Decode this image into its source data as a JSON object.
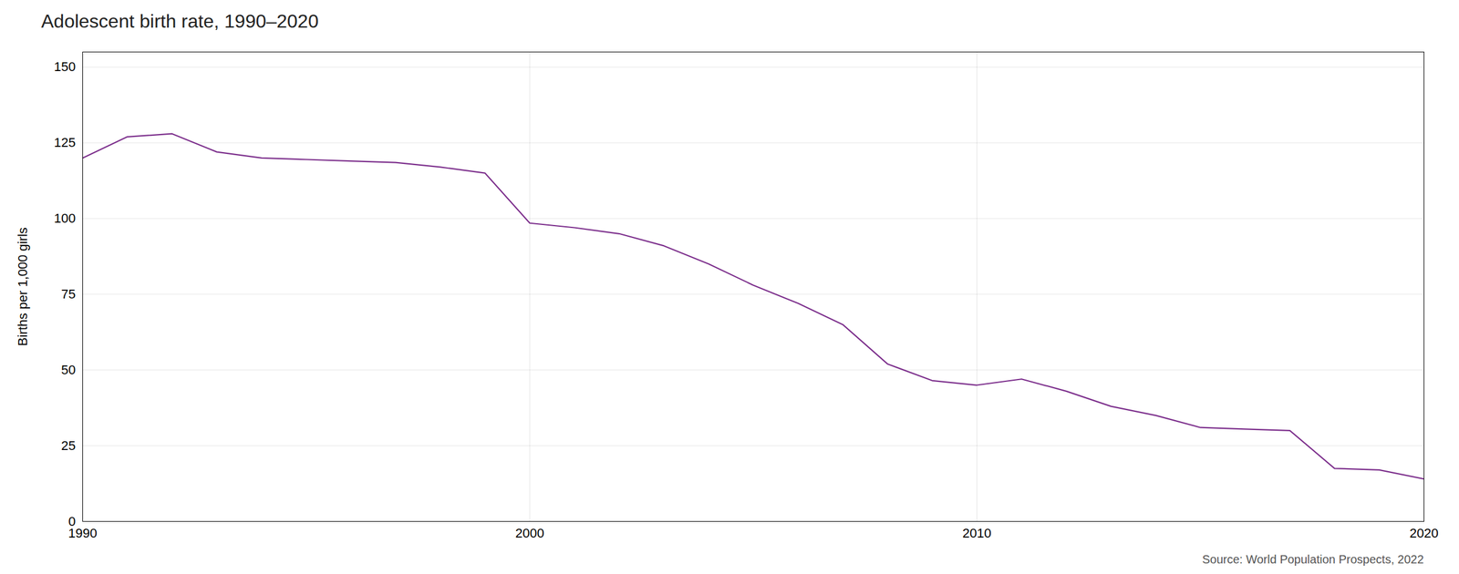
{
  "chart_data": {
    "type": "line",
    "title": "Adolescent birth rate, 1990–2020",
    "ylabel": "Births per 1,000 girls",
    "source": "Source: World Population Prospects, 2022",
    "x": [
      1990,
      1991,
      1992,
      1993,
      1994,
      1995,
      1996,
      1997,
      1998,
      1999,
      2000,
      2001,
      2002,
      2003,
      2004,
      2005,
      2006,
      2007,
      2008,
      2009,
      2010,
      2011,
      2012,
      2013,
      2014,
      2015,
      2016,
      2017,
      2018,
      2019,
      2020
    ],
    "values": [
      120.0,
      127.0,
      128.0,
      122.0,
      120.0,
      119.5,
      119.0,
      118.5,
      117.0,
      115.0,
      98.5,
      97.0,
      95.0,
      91.0,
      85.0,
      78.0,
      72.0,
      65.0,
      52.0,
      46.5,
      45.0,
      47.0,
      43.0,
      38.0,
      35.0,
      31.0,
      30.5,
      30.0,
      17.5,
      17.0,
      14.0
    ],
    "color": "#7b2d8b",
    "xlim": [
      1990,
      2020
    ],
    "xticks": [
      1990,
      2000,
      2010,
      2020
    ],
    "ylim": [
      0,
      155
    ],
    "yticks": [
      0,
      25,
      50,
      75,
      100,
      125,
      150
    ],
    "grid": true
  }
}
